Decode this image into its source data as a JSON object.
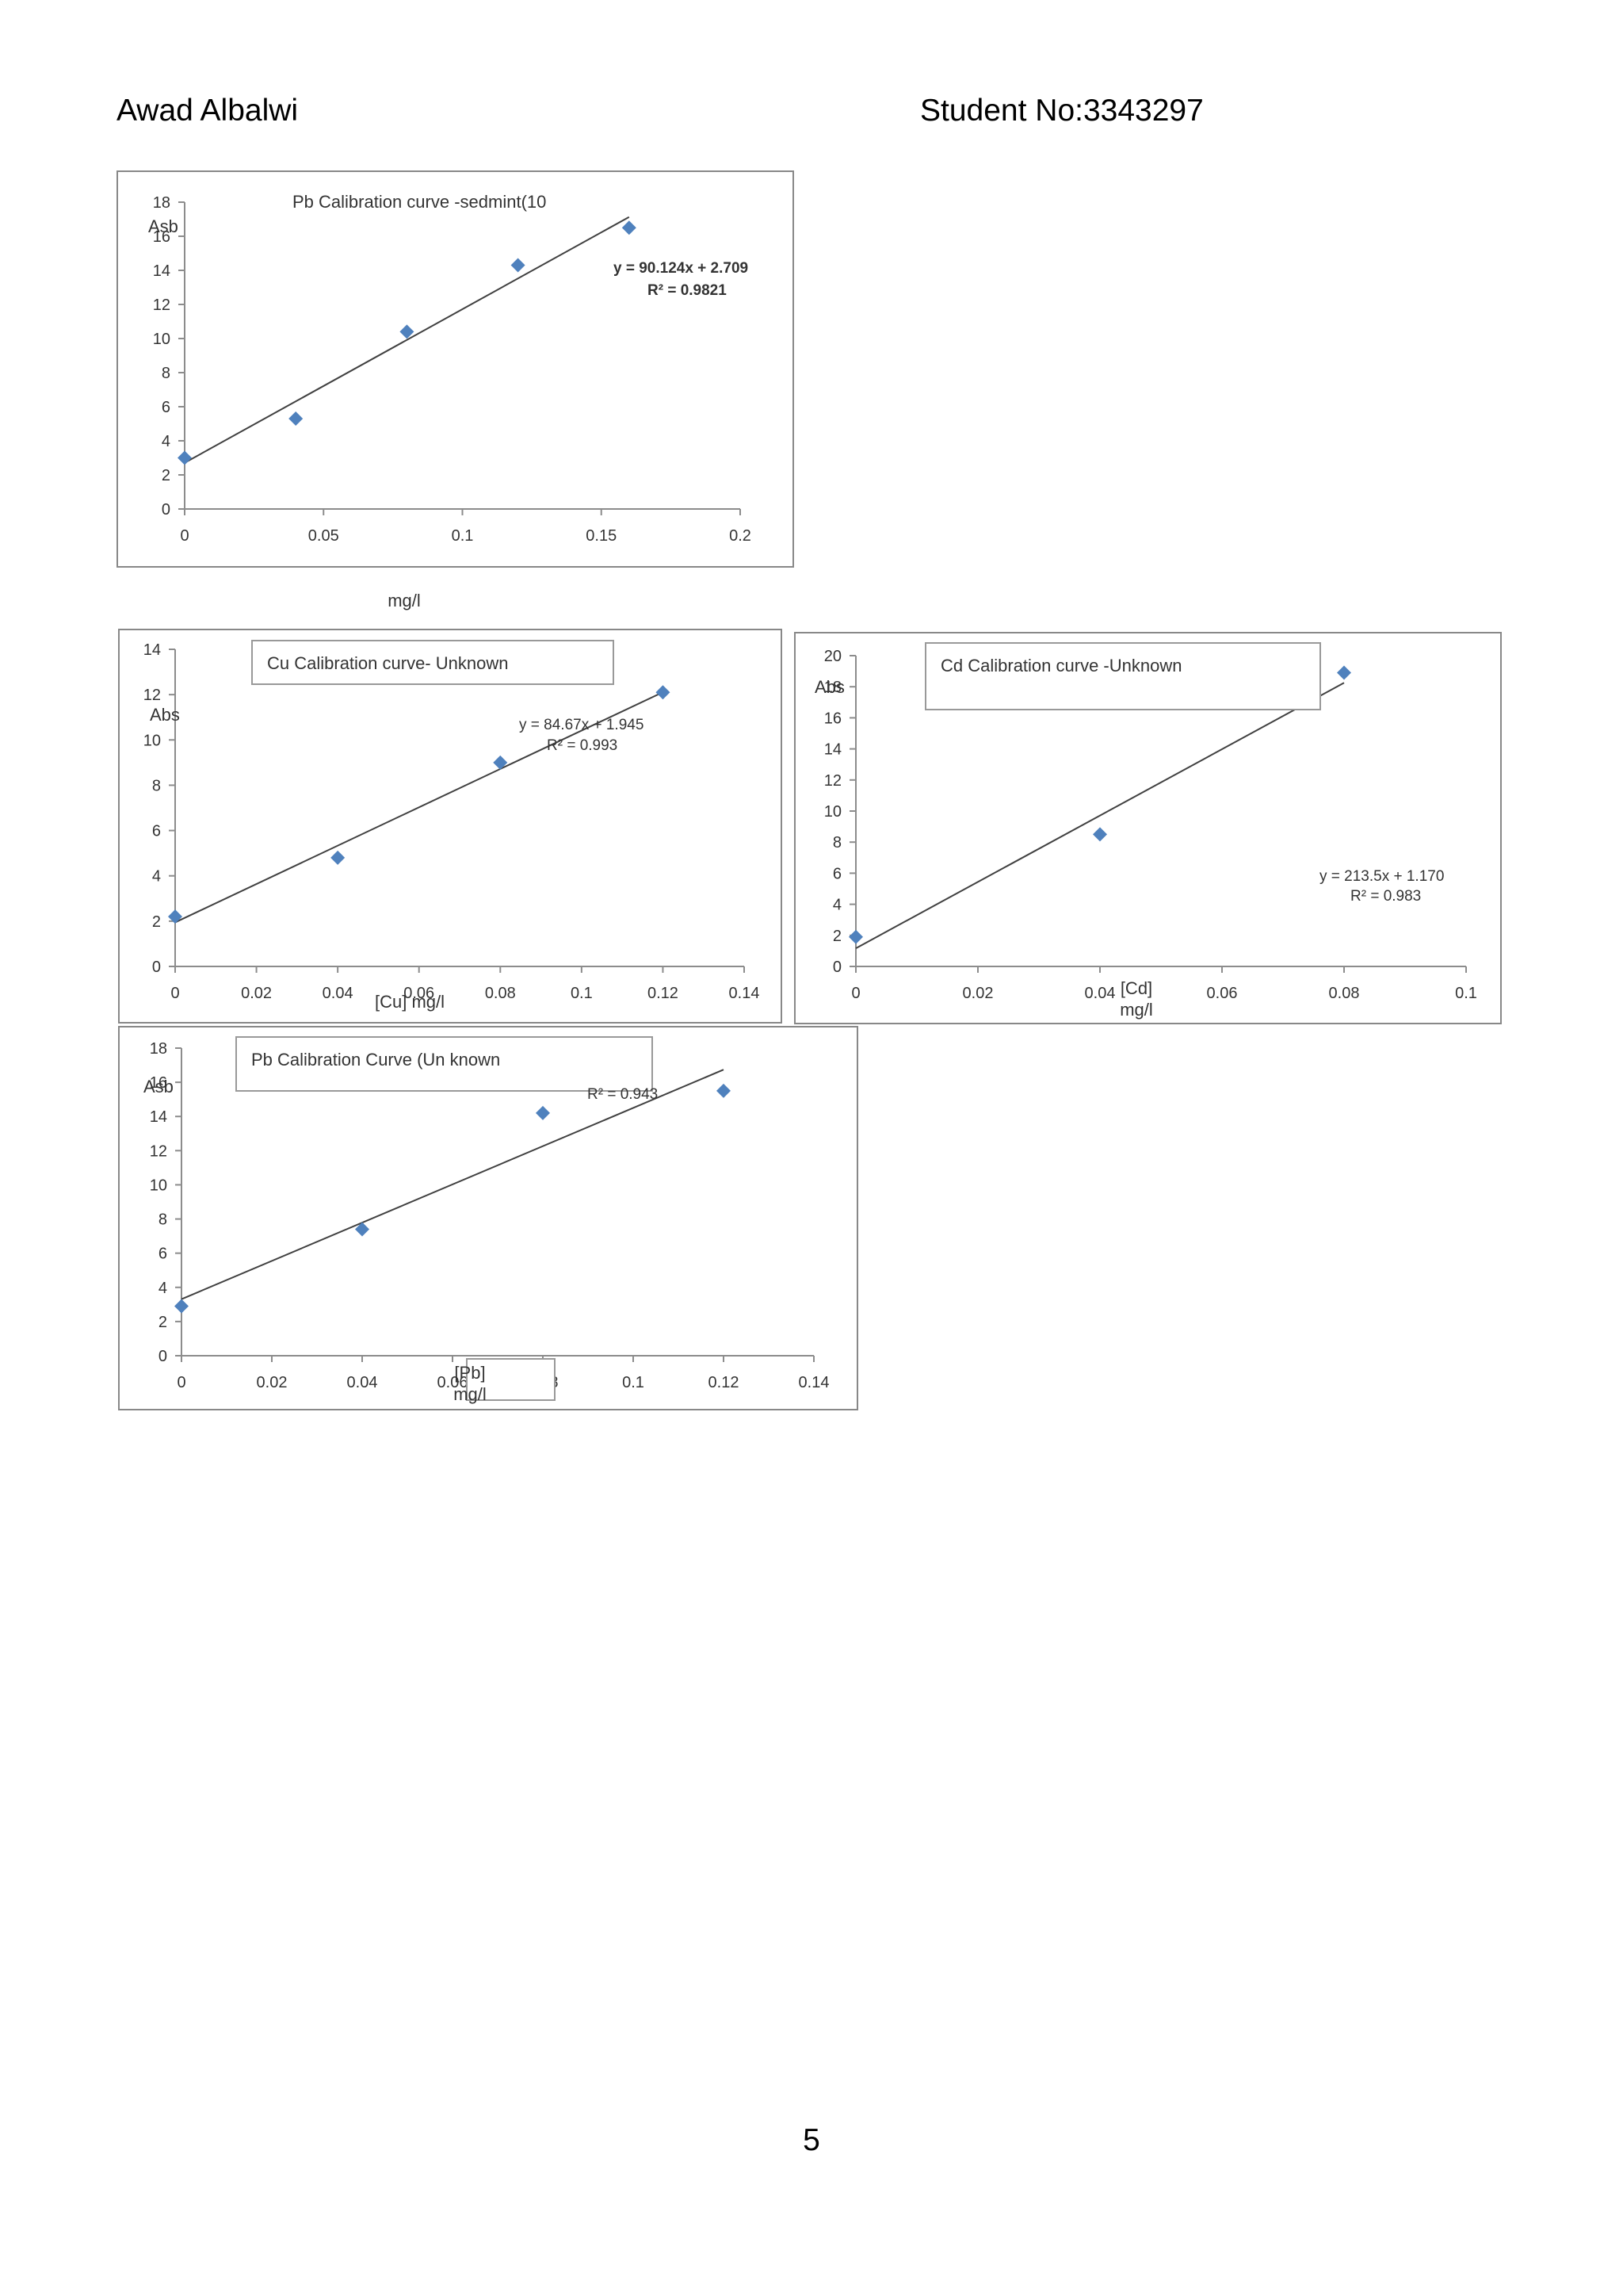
{
  "header": {
    "name": "Awad Albalwi",
    "student": "Student No:3343297"
  },
  "footer": {
    "page": "5"
  },
  "colors": {
    "marker": "#4f81bd",
    "trendline": "#404040",
    "axis": "#8c8c8c",
    "frame": "#888888"
  },
  "chart_data": [
    {
      "id": "pb-sediment",
      "type": "scatter",
      "title": "Pb Calibration curve -sedmint(10",
      "title_boxed": false,
      "ylabel": "Asb",
      "xlabel": "mg/l",
      "xlim": [
        0,
        0.2
      ],
      "ylim": [
        0,
        18
      ],
      "x_ticks": [
        0,
        0.05,
        0.1,
        0.15,
        0.2
      ],
      "x_tick_labels": [
        "0",
        "0.05",
        "0.1",
        "0.15",
        "0.2"
      ],
      "y_ticks": [
        0,
        2,
        4,
        6,
        8,
        10,
        12,
        14,
        16,
        18
      ],
      "y_tick_labels": [
        "0",
        "2",
        "4",
        "6",
        "8",
        "10",
        "12",
        "14",
        "16",
        "18"
      ],
      "x": [
        0,
        0.04,
        0.08,
        0.12,
        0.16
      ],
      "y": [
        3.0,
        5.3,
        10.4,
        14.3,
        16.5
      ],
      "trendline": {
        "slope": 90.124,
        "intercept": 2.709,
        "x_range": [
          0,
          0.16
        ]
      },
      "equation": "y = 90.124x + 2.709",
      "r2": "R² = 0.9821",
      "equation_bold": true
    },
    {
      "id": "cu-unknown",
      "type": "scatter",
      "title": "Cu Calibration curve- Unknown",
      "title_boxed": true,
      "ylabel": "Abs",
      "xlabel": "[Cu] mg/l",
      "xlim": [
        0,
        0.14
      ],
      "ylim": [
        0,
        14
      ],
      "x_ticks": [
        0,
        0.02,
        0.04,
        0.06,
        0.08,
        0.1,
        0.12,
        0.14
      ],
      "x_tick_labels": [
        "0",
        "0.02",
        "0.04",
        "0.06",
        "0.08",
        "0.1",
        "0.12",
        "0.14"
      ],
      "y_ticks": [
        0,
        2,
        4,
        6,
        8,
        10,
        12,
        14
      ],
      "y_tick_labels": [
        "0",
        "2",
        "4",
        "6",
        "8",
        "10",
        "12",
        "14"
      ],
      "x": [
        0,
        0.04,
        0.08,
        0.12
      ],
      "y": [
        2.2,
        4.8,
        9.0,
        12.1
      ],
      "trendline": {
        "slope": 84.67,
        "intercept": 1.945,
        "x_range": [
          0,
          0.12
        ]
      },
      "equation": "y = 84.67x + 1.945",
      "r2": "R² = 0.993",
      "equation_bold": false
    },
    {
      "id": "cd-unknown",
      "type": "scatter",
      "title": "Cd Calibration curve -Unknown",
      "title_boxed": true,
      "ylabel": "Abs",
      "xlabel": "[Cd] mg/l",
      "xlim": [
        0,
        0.1
      ],
      "ylim": [
        0,
        20
      ],
      "x_ticks": [
        0,
        0.02,
        0.04,
        0.06,
        0.08,
        0.1
      ],
      "x_tick_labels": [
        "0",
        "0.02",
        "0.04",
        "0.06",
        "0.08",
        "0.1"
      ],
      "y_ticks": [
        0,
        2,
        4,
        6,
        8,
        10,
        12,
        14,
        16,
        18,
        20
      ],
      "y_tick_labels": [
        "0",
        "2",
        "4",
        "6",
        "8",
        "10",
        "12",
        "14",
        "16",
        "18",
        "20"
      ],
      "x": [
        0,
        0.04,
        0.08
      ],
      "y": [
        1.9,
        8.5,
        18.9
      ],
      "trendline": {
        "slope": 213.5,
        "intercept": 1.17,
        "x_range": [
          0,
          0.08
        ]
      },
      "equation": "y = 213.5x + 1.170",
      "r2": "R² = 0.983",
      "equation_bold": false
    },
    {
      "id": "pb-unknown",
      "type": "scatter",
      "title": "Pb Calibration Curve (Un known",
      "title_boxed": true,
      "ylabel": "Asb",
      "xlabel": "[Pb] mg/l",
      "xlim": [
        0,
        0.14
      ],
      "ylim": [
        0,
        18
      ],
      "x_ticks": [
        0,
        0.02,
        0.04,
        0.06,
        0.08,
        0.1,
        0.12,
        0.14
      ],
      "x_tick_labels": [
        "0",
        "0.02",
        "0.04",
        "0.06",
        "0.08",
        "0.1",
        "0.12",
        "0.14"
      ],
      "y_ticks": [
        0,
        2,
        4,
        6,
        8,
        10,
        12,
        14,
        16,
        18
      ],
      "y_tick_labels": [
        "0",
        "2",
        "4",
        "6",
        "8",
        "10",
        "12",
        "14",
        "16",
        "18"
      ],
      "x": [
        0,
        0.04,
        0.08,
        0.12
      ],
      "y": [
        2.9,
        7.4,
        14.2,
        15.5
      ],
      "trendline": {
        "slope": 111.9,
        "intercept": 3.31,
        "x_range": [
          0,
          0.12
        ]
      },
      "equation": "",
      "r2": "R² = 0.943",
      "equation_bold": false
    }
  ]
}
